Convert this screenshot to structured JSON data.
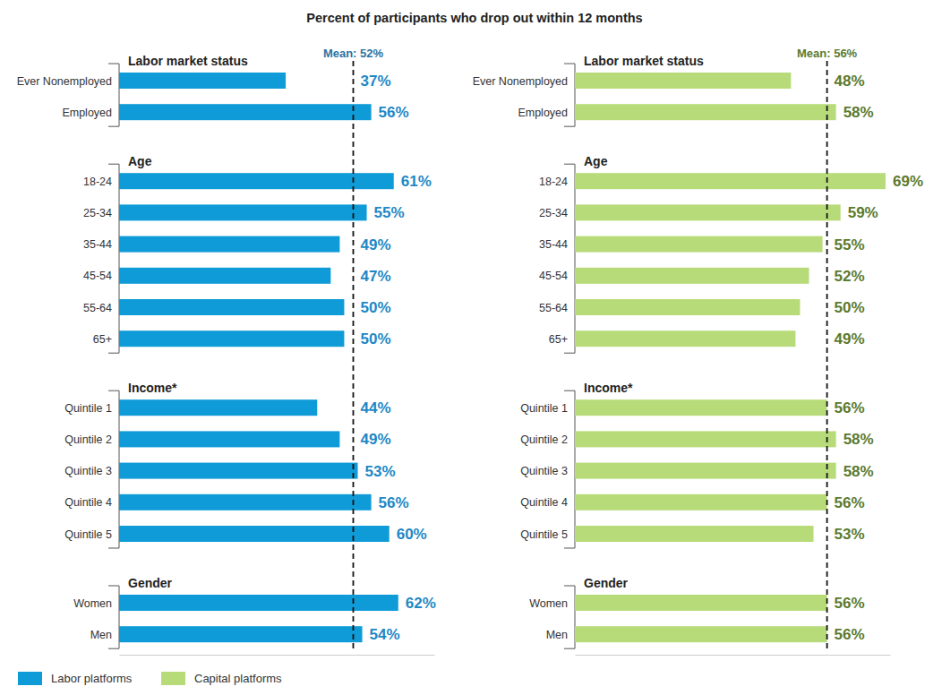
{
  "title": "Percent of participants who drop out within 12 months",
  "chart_data": [
    {
      "type": "bar",
      "orientation": "horizontal",
      "data_labels": true,
      "tick_labels": "y",
      "legend": "bottom",
      "xlim": [
        0,
        70
      ],
      "mean": {
        "value": 52,
        "label": "Mean: 52%"
      },
      "groups": [
        {
          "name": "Labor market status",
          "categories": [
            "Ever Nonemployed",
            "Employed"
          ]
        },
        {
          "name": "Age",
          "categories": [
            "18-24",
            "25-34",
            "35-44",
            "45-54",
            "55-64",
            "65+"
          ]
        },
        {
          "name": "Income*",
          "categories": [
            "Quintile 1",
            "Quintile 2",
            "Quintile 3",
            "Quintile 4",
            "Quintile 5"
          ]
        },
        {
          "name": "Gender",
          "categories": [
            "Women",
            "Men"
          ]
        }
      ],
      "series": [
        {
          "name": "Labor platforms",
          "color": "#0f9bd7",
          "values": [
            [
              37,
              56
            ],
            [
              61,
              55,
              49,
              47,
              50,
              50
            ],
            [
              44,
              49,
              53,
              56,
              60
            ],
            [
              62,
              54
            ]
          ],
          "value_labels": [
            [
              "37%",
              "56%"
            ],
            [
              "61%",
              "55%",
              "49%",
              "47%",
              "50%",
              "50%"
            ],
            [
              "44%",
              "49%",
              "53%",
              "56%",
              "60%"
            ],
            [
              "62%",
              "54%"
            ]
          ]
        }
      ]
    },
    {
      "type": "bar",
      "orientation": "horizontal",
      "data_labels": true,
      "tick_labels": "y",
      "legend": "bottom",
      "xlim": [
        0,
        70
      ],
      "mean": {
        "value": 56,
        "label": "Mean: 56%"
      },
      "groups": [
        {
          "name": "Labor market status",
          "categories": [
            "Ever Nonemployed",
            "Employed"
          ]
        },
        {
          "name": "Age",
          "categories": [
            "18-24",
            "25-34",
            "35-44",
            "45-54",
            "55-64",
            "65+"
          ]
        },
        {
          "name": "Income*",
          "categories": [
            "Quintile 1",
            "Quintile 2",
            "Quintile 3",
            "Quintile 4",
            "Quintile 5"
          ]
        },
        {
          "name": "Gender",
          "categories": [
            "Women",
            "Men"
          ]
        }
      ],
      "series": [
        {
          "name": "Capital platforms",
          "color": "#b8db7a",
          "values": [
            [
              48,
              58
            ],
            [
              69,
              59,
              55,
              52,
              50,
              49
            ],
            [
              56,
              58,
              58,
              56,
              53
            ],
            [
              56,
              56
            ]
          ],
          "value_labels": [
            [
              "48%",
              "58%"
            ],
            [
              "69%",
              "59%",
              "55%",
              "52%",
              "50%",
              "49%"
            ],
            [
              "56%",
              "58%",
              "58%",
              "56%",
              "53%"
            ],
            [
              "56%",
              "56%"
            ]
          ]
        }
      ]
    }
  ]
}
